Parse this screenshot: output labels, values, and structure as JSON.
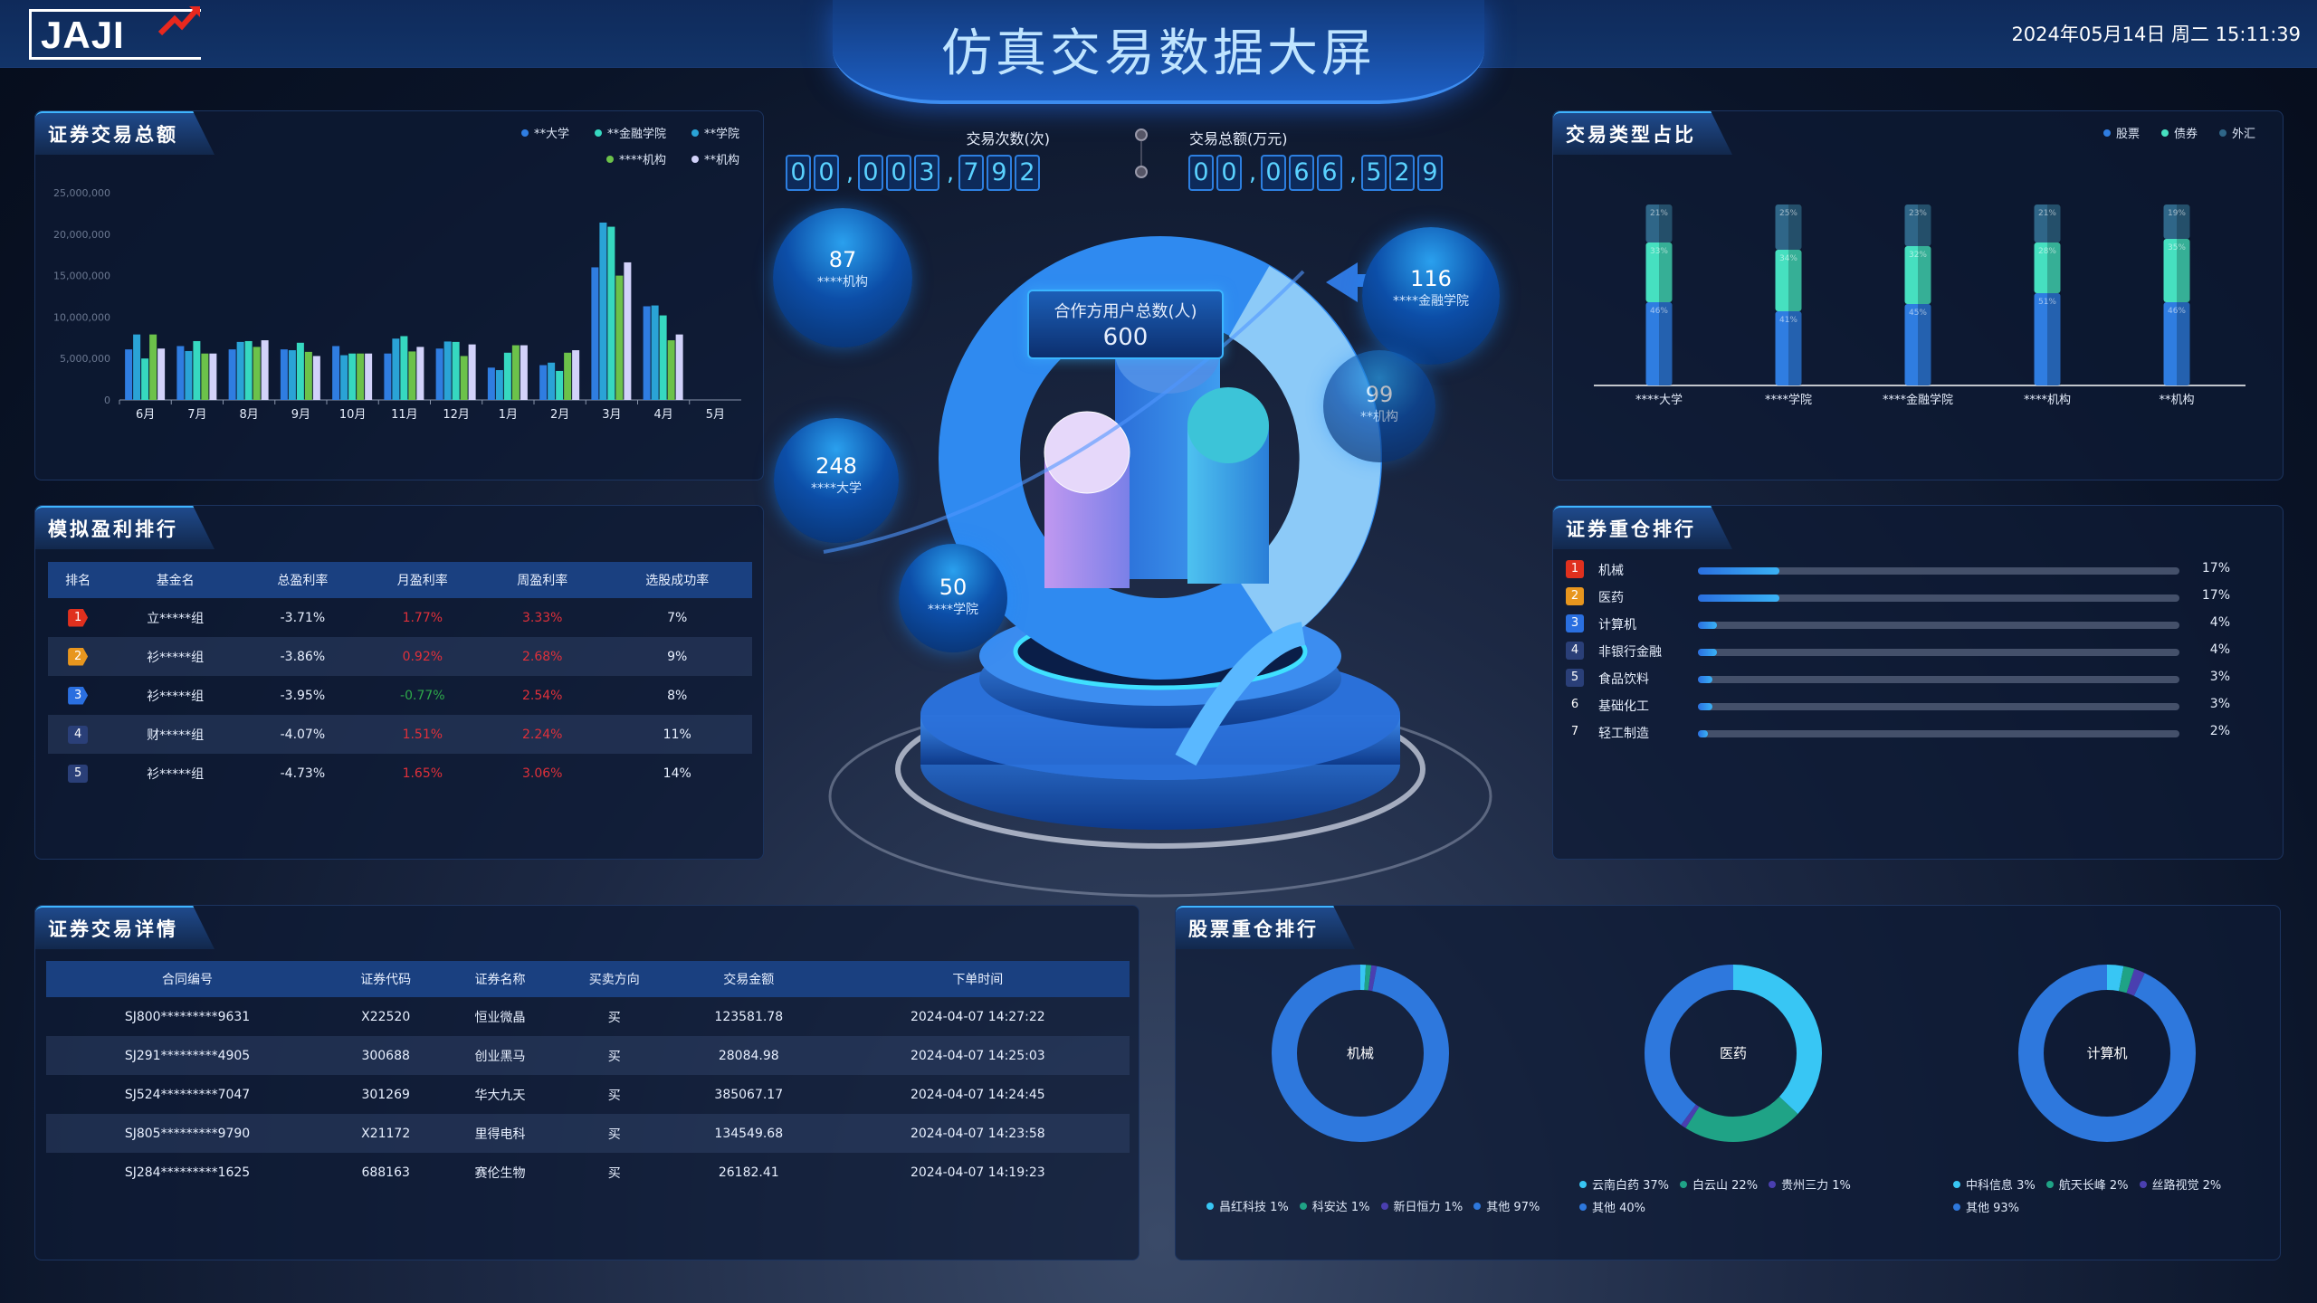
{
  "header": {
    "logo": "JAJI",
    "title": "仿真交易数据大屏",
    "datetime": "2024年05月14日  周二  15:11:39"
  },
  "trade_total": {
    "title": "证券交易总额",
    "chart_data": {
      "type": "bar",
      "categories": [
        "6月",
        "7月",
        "8月",
        "9月",
        "10月",
        "11月",
        "12月",
        "1月",
        "2月",
        "3月",
        "4月",
        "5月"
      ],
      "ylim": [
        0,
        25000000
      ],
      "yticks": [
        "0",
        "5,000,000",
        "10,000,000",
        "15,000,000",
        "20,000,000",
        "25,000,000"
      ],
      "legend_position": "top-right",
      "series": [
        {
          "name": "**大学",
          "color": "#2f7de1",
          "values": [
            6100000,
            6500000,
            6100000,
            6100000,
            6500000,
            5600000,
            6200000,
            3900000,
            4200000,
            16000000,
            11300000,
            null
          ]
        },
        {
          "name": "**学院",
          "color": "#2aa3d6",
          "values": [
            7900000,
            5900000,
            7000000,
            6000000,
            5400000,
            7400000,
            7050000,
            3600000,
            4500000,
            21400000,
            11400000,
            null
          ]
        },
        {
          "name": "**金融学院",
          "color": "#36d8c0",
          "values": [
            5000000,
            7100000,
            7100000,
            6900000,
            5600000,
            7700000,
            7000000,
            5700000,
            3500000,
            20900000,
            10200000,
            null
          ]
        },
        {
          "name": "****机构",
          "color": "#6cc24a",
          "values": [
            7900000,
            5600000,
            6400000,
            5800000,
            5600000,
            5850000,
            5300000,
            6600000,
            5700000,
            15000000,
            7200000,
            null
          ]
        },
        {
          "name": "**机构",
          "color": "#d2d2fa",
          "values": [
            6200000,
            5600000,
            7200000,
            5300000,
            5600000,
            6400000,
            6700000,
            6600000,
            6000000,
            16600000,
            7900000,
            null
          ]
        }
      ],
      "legend_order": [
        0,
        2,
        1,
        3,
        4
      ]
    }
  },
  "profit_rank": {
    "title": "模拟盈利排行",
    "columns": [
      "排名",
      "基金名",
      "总盈利率",
      "月盈利率",
      "周盈利率",
      "选股成功率"
    ],
    "rows": [
      {
        "rank": "1",
        "name": "立*****组",
        "total": "-3.71%",
        "month": "1.77%",
        "week": "3.33%",
        "success": "7%",
        "month_up": true
      },
      {
        "rank": "2",
        "name": "衫*****组",
        "total": "-3.86%",
        "month": "0.92%",
        "week": "2.68%",
        "success": "9%",
        "month_up": true
      },
      {
        "rank": "3",
        "name": "衫*****组",
        "total": "-3.95%",
        "month": "-0.77%",
        "week": "2.54%",
        "success": "8%",
        "month_up": false
      },
      {
        "rank": "4",
        "name": "财*****组",
        "total": "-4.07%",
        "month": "1.51%",
        "week": "2.24%",
        "success": "11%",
        "month_up": true
      },
      {
        "rank": "5",
        "name": "衫*****组",
        "total": "-4.73%",
        "month": "1.65%",
        "week": "3.06%",
        "success": "14%",
        "month_up": true
      }
    ],
    "rank_colors": [
      "#e0301e",
      "#e8961e",
      "#2a6fe0",
      "#2a3f78",
      "#2a3f78"
    ],
    "up_color": "#e0303a",
    "down_color": "#2ea84a"
  },
  "trade_detail": {
    "title": "证券交易详情",
    "columns": [
      "合同编号",
      "证券代码",
      "证券名称",
      "买卖方向",
      "交易金额",
      "下单时间"
    ],
    "rows": [
      [
        "SJ800*********9631",
        "X22520",
        "恒业微晶",
        "买",
        "123581.78",
        "2024-04-07 14:27:22"
      ],
      [
        "SJ291*********4905",
        "300688",
        "创业黑马",
        "买",
        "28084.98",
        "2024-04-07 14:25:03"
      ],
      [
        "SJ524*********7047",
        "301269",
        "华大九天",
        "买",
        "385067.17",
        "2024-04-07 14:24:45"
      ],
      [
        "SJ805*********9790",
        "X21172",
        "里得电科",
        "买",
        "134549.68",
        "2024-04-07 14:23:58"
      ],
      [
        "SJ284*********1625",
        "688163",
        "赛伦生物",
        "买",
        "26182.41",
        "2024-04-07 14:19:23"
      ]
    ]
  },
  "counters": {
    "count_label": "交易次数(次)",
    "count_groups": [
      "00",
      "003",
      "792"
    ],
    "amount_label": "交易总额(万元)",
    "amount_groups": [
      "00",
      "066",
      "529"
    ]
  },
  "center": {
    "box_label": "合作方用户总数(人)",
    "box_value": "600",
    "bubbles": [
      {
        "value": "87",
        "label": "****机构"
      },
      {
        "value": "248",
        "label": "****大学"
      },
      {
        "value": "50",
        "label": "****学院"
      },
      {
        "value": "116",
        "label": "****金融学院"
      },
      {
        "value": "99",
        "label": "**机构"
      }
    ]
  },
  "type_ratio": {
    "title": "交易类型占比",
    "chart_data": {
      "type": "bar",
      "stacked": true,
      "categories": [
        "****大学",
        "****学院",
        "****金融学院",
        "****机构",
        "**机构"
      ],
      "series": [
        {
          "name": "股票",
          "color": "#2f7de1",
          "values": [
            46,
            41,
            45,
            51,
            46
          ]
        },
        {
          "name": "债券",
          "color": "#46e0c0",
          "values": [
            33,
            34,
            32,
            28,
            35
          ]
        },
        {
          "name": "外汇",
          "color": "#2f6688",
          "values": [
            21,
            25,
            23,
            21,
            19
          ]
        }
      ],
      "unit": "%",
      "legend_position": "top-right"
    }
  },
  "holding_rank": {
    "title": "证券重仓排行",
    "items": [
      {
        "rank": "1",
        "name": "机械",
        "pct": 17,
        "label": "17%"
      },
      {
        "rank": "2",
        "name": "医药",
        "pct": 17,
        "label": "17%"
      },
      {
        "rank": "3",
        "name": "计算机",
        "pct": 4,
        "label": "4%"
      },
      {
        "rank": "4",
        "name": "非银行金融",
        "pct": 4,
        "label": "4%"
      },
      {
        "rank": "5",
        "name": "食品饮料",
        "pct": 3,
        "label": "3%"
      },
      {
        "rank": "6",
        "name": "基础化工",
        "pct": 3,
        "label": "3%"
      },
      {
        "rank": "7",
        "name": "轻工制造",
        "pct": 2,
        "label": "2%"
      }
    ]
  },
  "stock_rank": {
    "title": "股票重仓排行",
    "chart_data": [
      {
        "type": "pie",
        "center_label": "机械",
        "slices": [
          {
            "name": "昌红科技",
            "value": 1,
            "color": "#38c6f4"
          },
          {
            "name": "科安达",
            "value": 1,
            "color": "#1fa386"
          },
          {
            "name": "新日恒力",
            "value": 1,
            "color": "#4a3fb0"
          },
          {
            "name": "其他",
            "value": 97,
            "color": "#2e78dd"
          }
        ]
      },
      {
        "type": "pie",
        "center_label": "医药",
        "slices": [
          {
            "name": "云南白药",
            "value": 37,
            "color": "#38c6f4"
          },
          {
            "name": "白云山",
            "value": 22,
            "color": "#1fa386"
          },
          {
            "name": "贵州三力",
            "value": 1,
            "color": "#4a3fb0"
          },
          {
            "name": "其他",
            "value": 40,
            "color": "#2e78dd"
          }
        ]
      },
      {
        "type": "pie",
        "center_label": "计算机",
        "slices": [
          {
            "name": "中科信息",
            "value": 3,
            "color": "#38c6f4"
          },
          {
            "name": "航天长峰",
            "value": 2,
            "color": "#1fa386"
          },
          {
            "name": "丝路视觉",
            "value": 2,
            "color": "#4a3fb0"
          },
          {
            "name": "其他",
            "value": 93,
            "color": "#2e78dd"
          }
        ]
      }
    ]
  }
}
